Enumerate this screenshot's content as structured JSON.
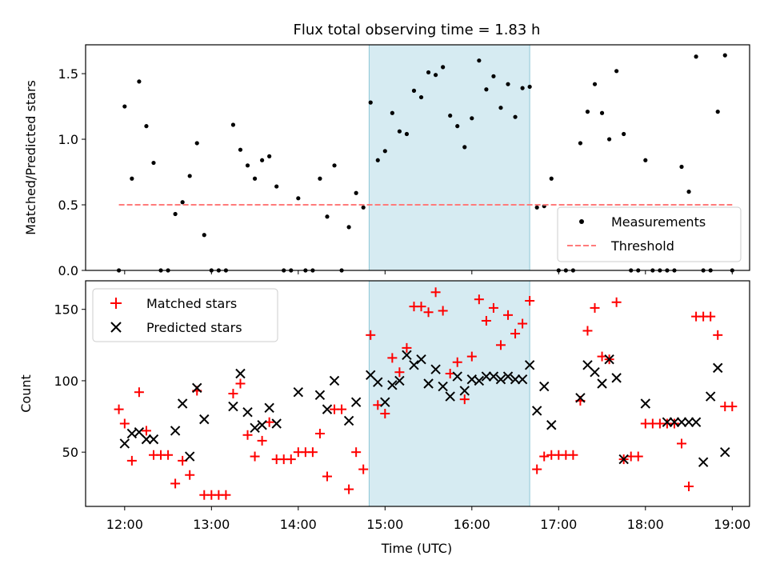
{
  "chart_data": [
    {
      "type": "scatter",
      "title": "Flux total observing time = 1.83 h",
      "xlabel": "",
      "ylabel": "Matched/Predicted stars",
      "xlim": [
        "11:33",
        "19:12"
      ],
      "ylim": [
        0,
        1.72
      ],
      "yticks": [
        "0.0",
        "0.5",
        "1.0",
        "1.5"
      ],
      "xticks": [
        "12:00",
        "13:00",
        "14:00",
        "15:00",
        "16:00",
        "17:00",
        "18:00",
        "19:00"
      ],
      "highlight": {
        "start": "14:49",
        "end": "16:40",
        "color": "#add8e6"
      },
      "legend": {
        "position": "lower-right",
        "entries": [
          "Measurements",
          "Threshold"
        ]
      },
      "series": [
        {
          "name": "Measurements",
          "marker": "dot",
          "color": "#000000",
          "x": [
            "11:56",
            "12:00",
            "12:05",
            "12:10",
            "12:15",
            "12:20",
            "12:25",
            "12:30",
            "12:35",
            "12:40",
            "12:45",
            "12:50",
            "12:55",
            "13:00",
            "13:05",
            "13:10",
            "13:15",
            "13:20",
            "13:25",
            "13:30",
            "13:35",
            "13:40",
            "13:45",
            "13:50",
            "13:55",
            "14:00",
            "14:05",
            "14:10",
            "14:15",
            "14:20",
            "14:25",
            "14:30",
            "14:35",
            "14:40",
            "14:45",
            "14:50",
            "14:55",
            "15:00",
            "15:05",
            "15:10",
            "15:15",
            "15:20",
            "15:25",
            "15:30",
            "15:35",
            "15:40",
            "15:45",
            "15:50",
            "15:55",
            "16:00",
            "16:05",
            "16:10",
            "16:15",
            "16:20",
            "16:25",
            "16:30",
            "16:35",
            "16:40",
            "16:45",
            "16:50",
            "16:55",
            "17:00",
            "17:05",
            "17:10",
            "17:15",
            "17:20",
            "17:25",
            "17:30",
            "17:35",
            "17:40",
            "17:45",
            "17:50",
            "17:55",
            "18:00",
            "18:05",
            "18:10",
            "18:15",
            "18:20",
            "18:25",
            "18:30",
            "18:35",
            "18:40",
            "18:45",
            "18:50",
            "18:55",
            "19:00"
          ],
          "y": [
            0,
            1.25,
            0.7,
            1.44,
            1.1,
            0.82,
            0,
            0,
            0.43,
            0.52,
            0.72,
            0.97,
            0.27,
            0,
            0,
            0,
            1.11,
            0.92,
            0.8,
            0.7,
            0.84,
            0.87,
            0.64,
            0,
            0,
            0.55,
            0,
            0,
            0.7,
            0.41,
            0.8,
            0,
            0.33,
            0.59,
            0.48,
            1.28,
            0.84,
            0.91,
            1.2,
            1.06,
            1.04,
            1.37,
            1.32,
            1.51,
            1.49,
            1.55,
            1.18,
            1.1,
            0.94,
            1.16,
            1.6,
            1.38,
            1.48,
            1.24,
            1.42,
            1.17,
            1.39,
            1.4,
            0.48,
            0.49,
            0.7,
            0,
            0,
            0,
            0.97,
            1.21,
            1.42,
            1.2,
            1.0,
            1.52,
            1.04,
            0,
            0,
            0.84,
            0,
            0,
            0,
            0,
            0.79,
            0.6,
            1.63,
            0,
            0,
            1.21,
            1.64,
            0
          ]
        },
        {
          "name": "Threshold",
          "type": "line",
          "style": "dashed",
          "color": "#ff7b7b",
          "x": [
            "11:56",
            "19:00"
          ],
          "y": [
            0.5,
            0.5
          ]
        }
      ]
    },
    {
      "type": "scatter",
      "title": "",
      "xlabel": "Time (UTC)",
      "ylabel": "Count",
      "xlim": [
        "11:33",
        "19:12"
      ],
      "ylim": [
        12,
        170
      ],
      "yticks": [
        "50",
        "100",
        "150"
      ],
      "xticks": [
        "12:00",
        "13:00",
        "14:00",
        "15:00",
        "16:00",
        "17:00",
        "18:00",
        "19:00"
      ],
      "highlight": {
        "start": "14:49",
        "end": "16:40",
        "color": "#add8e6"
      },
      "legend": {
        "position": "upper-left",
        "entries": [
          "Matched stars",
          "Predicted stars"
        ]
      },
      "series": [
        {
          "name": "Matched stars",
          "marker": "plus",
          "color": "#ff0000",
          "x": [
            "11:56",
            "12:00",
            "12:05",
            "12:10",
            "12:15",
            "12:20",
            "12:25",
            "12:30",
            "12:35",
            "12:40",
            "12:45",
            "12:50",
            "12:55",
            "13:00",
            "13:05",
            "13:10",
            "13:15",
            "13:20",
            "13:25",
            "13:30",
            "13:35",
            "13:40",
            "13:45",
            "13:50",
            "13:55",
            "14:00",
            "14:05",
            "14:10",
            "14:15",
            "14:20",
            "14:25",
            "14:30",
            "14:35",
            "14:40",
            "14:45",
            "14:50",
            "14:55",
            "15:00",
            "15:05",
            "15:10",
            "15:15",
            "15:20",
            "15:25",
            "15:30",
            "15:35",
            "15:40",
            "15:45",
            "15:50",
            "15:55",
            "16:00",
            "16:05",
            "16:10",
            "16:15",
            "16:20",
            "16:25",
            "16:30",
            "16:35",
            "16:40",
            "16:45",
            "16:50",
            "16:55",
            "17:00",
            "17:05",
            "17:10",
            "17:15",
            "17:20",
            "17:25",
            "17:30",
            "17:35",
            "17:40",
            "17:45",
            "17:50",
            "17:55",
            "18:00",
            "18:05",
            "18:10",
            "18:15",
            "18:20",
            "18:25",
            "18:30",
            "18:35",
            "18:40",
            "18:45",
            "18:50",
            "18:55",
            "19:00"
          ],
          "y": [
            80,
            70,
            44,
            92,
            65,
            48,
            48,
            48,
            28,
            44,
            34,
            93,
            20,
            20,
            20,
            20,
            91,
            98,
            62,
            47,
            58,
            71,
            45,
            45,
            45,
            50,
            50,
            50,
            63,
            33,
            80,
            80,
            24,
            50,
            38,
            132,
            83,
            77,
            116,
            106,
            123,
            152,
            152,
            148,
            162,
            149,
            105,
            113,
            87,
            117,
            157,
            142,
            151,
            125,
            146,
            133,
            140,
            156,
            38,
            47,
            48,
            48,
            48,
            48,
            86,
            135,
            151,
            117,
            115,
            155,
            45,
            47,
            47,
            70,
            70,
            70,
            70,
            70,
            56,
            26,
            145,
            145,
            145,
            132,
            82,
            82
          ]
        },
        {
          "name": "Predicted stars",
          "marker": "x",
          "color": "#000000",
          "x": [
            "12:00",
            "12:05",
            "12:10",
            "12:15",
            "12:20",
            "12:35",
            "12:40",
            "12:45",
            "12:50",
            "12:55",
            "13:15",
            "13:20",
            "13:25",
            "13:30",
            "13:35",
            "13:40",
            "13:45",
            "14:00",
            "14:15",
            "14:20",
            "14:25",
            "14:35",
            "14:40",
            "14:50",
            "14:55",
            "15:00",
            "15:05",
            "15:10",
            "15:15",
            "15:20",
            "15:25",
            "15:30",
            "15:35",
            "15:40",
            "15:45",
            "15:50",
            "15:55",
            "16:00",
            "16:05",
            "16:10",
            "16:15",
            "16:20",
            "16:25",
            "16:30",
            "16:35",
            "16:40",
            "16:45",
            "16:50",
            "16:55",
            "17:15",
            "17:20",
            "17:25",
            "17:30",
            "17:35",
            "17:40",
            "17:45",
            "18:00",
            "18:15",
            "18:20",
            "18:25",
            "18:30",
            "18:35",
            "18:40",
            "18:45",
            "18:50",
            "18:55"
          ],
          "y": [
            56,
            63,
            64,
            59,
            59,
            65,
            84,
            47,
            95,
            73,
            82,
            105,
            78,
            67,
            69,
            81,
            70,
            92,
            90,
            80,
            100,
            72,
            85,
            104,
            99,
            85,
            97,
            100,
            118,
            111,
            115,
            98,
            108,
            96,
            89,
            103,
            93,
            101,
            100,
            103,
            103,
            101,
            103,
            101,
            101,
            111,
            79,
            96,
            69,
            88,
            111,
            106,
            98,
            115,
            102,
            45,
            84,
            71,
            71,
            71,
            71,
            71,
            43,
            89,
            109,
            50
          ]
        }
      ]
    }
  ]
}
